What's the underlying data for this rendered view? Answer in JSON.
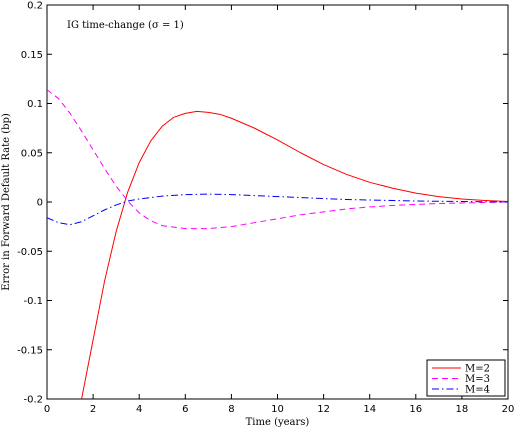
{
  "chart_data": {
    "type": "line",
    "title": "",
    "annotation": "IG time-change (σ = 1)",
    "xlabel": "Time (years)",
    "ylabel": "Error in Forward Default Rate (bp)",
    "xlim": [
      0,
      20
    ],
    "ylim": [
      -0.2,
      0.2
    ],
    "xticks": [
      0,
      2,
      4,
      6,
      8,
      10,
      12,
      14,
      16,
      18,
      20
    ],
    "yticks": [
      0.2,
      0.15,
      0.1,
      0.05,
      0,
      -0.05,
      -0.1,
      -0.15,
      -0.2
    ],
    "ytick_labels": [
      "0.2",
      "0.15",
      "0.1",
      "0.05",
      "0",
      "-0.05",
      "-0.1",
      "-0.15",
      "-0.2"
    ],
    "grid": false,
    "legend_position": "bottom-right",
    "series": [
      {
        "name": "M=2",
        "color": "#ff0000",
        "style": "solid",
        "x": [
          1.5,
          2,
          2.5,
          3,
          3.5,
          4,
          4.5,
          5,
          5.5,
          6,
          6.5,
          7,
          7.5,
          8,
          9,
          10,
          11,
          12,
          13,
          14,
          15,
          16,
          17,
          18,
          19,
          20
        ],
        "y": [
          -0.2,
          -0.14,
          -0.08,
          -0.03,
          0.01,
          0.04,
          0.062,
          0.077,
          0.086,
          0.09,
          0.092,
          0.091,
          0.089,
          0.085,
          0.075,
          0.063,
          0.05,
          0.038,
          0.028,
          0.02,
          0.014,
          0.009,
          0.0055,
          0.003,
          0.0015,
          0.0005
        ]
      },
      {
        "name": "M=3",
        "color": "#ff00ff",
        "style": "dashed",
        "x": [
          0,
          0.5,
          1,
          1.5,
          2,
          2.5,
          3,
          3.5,
          4,
          4.5,
          5,
          6,
          7,
          8,
          9,
          10,
          11,
          12,
          13,
          14,
          15,
          16,
          17,
          18,
          19,
          20
        ],
        "y": [
          0.114,
          0.105,
          0.09,
          0.072,
          0.053,
          0.034,
          0.016,
          0.001,
          -0.011,
          -0.019,
          -0.024,
          -0.027,
          -0.027,
          -0.025,
          -0.021,
          -0.017,
          -0.013,
          -0.01,
          -0.007,
          -0.005,
          -0.0035,
          -0.0025,
          -0.0015,
          -0.001,
          -0.0005,
          0
        ]
      },
      {
        "name": "M=4",
        "color": "#0000ff",
        "style": "dashdot",
        "x": [
          0,
          0.5,
          1,
          1.5,
          2,
          2.5,
          3,
          3.5,
          4,
          5,
          6,
          7,
          8,
          9,
          10,
          11,
          12,
          13,
          14,
          15,
          16,
          17,
          18,
          19,
          20
        ],
        "y": [
          -0.016,
          -0.021,
          -0.023,
          -0.02,
          -0.014,
          -0.008,
          -0.003,
          0.001,
          0.003,
          0.006,
          0.0075,
          0.008,
          0.0075,
          0.0065,
          0.0055,
          0.0045,
          0.0035,
          0.0025,
          0.002,
          0.0015,
          0.001,
          0.0007,
          0.0005,
          0.0002,
          0
        ]
      }
    ]
  }
}
